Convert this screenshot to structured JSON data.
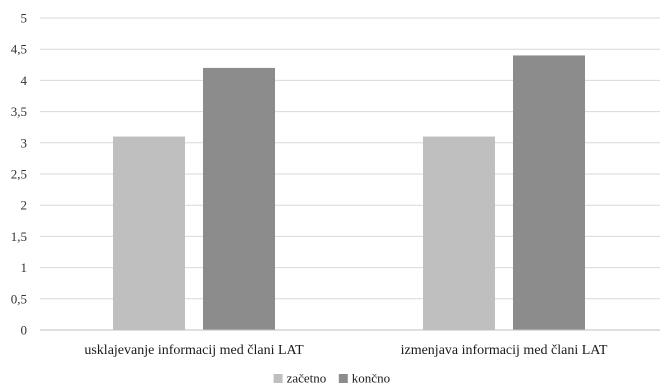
{
  "chart_data": {
    "type": "bar",
    "categories": [
      "usklajevanje informacij med člani LAT",
      "izmenjava informacij med člani LAT"
    ],
    "series": [
      {
        "name": "začetno",
        "values": [
          3.1,
          3.1
        ],
        "color": "#bfbfbf"
      },
      {
        "name": "končno",
        "values": [
          4.2,
          4.4
        ],
        "color": "#8c8c8c"
      }
    ],
    "y_ticks": [
      "0",
      "0,5",
      "1",
      "1,5",
      "2",
      "2,5",
      "3",
      "3,5",
      "4",
      "4,5",
      "5"
    ],
    "ylim": [
      0,
      5
    ],
    "ytick_step": 0.5,
    "grid": true,
    "legend_position": "bottom-center",
    "title": "",
    "xlabel": "",
    "ylabel": ""
  }
}
